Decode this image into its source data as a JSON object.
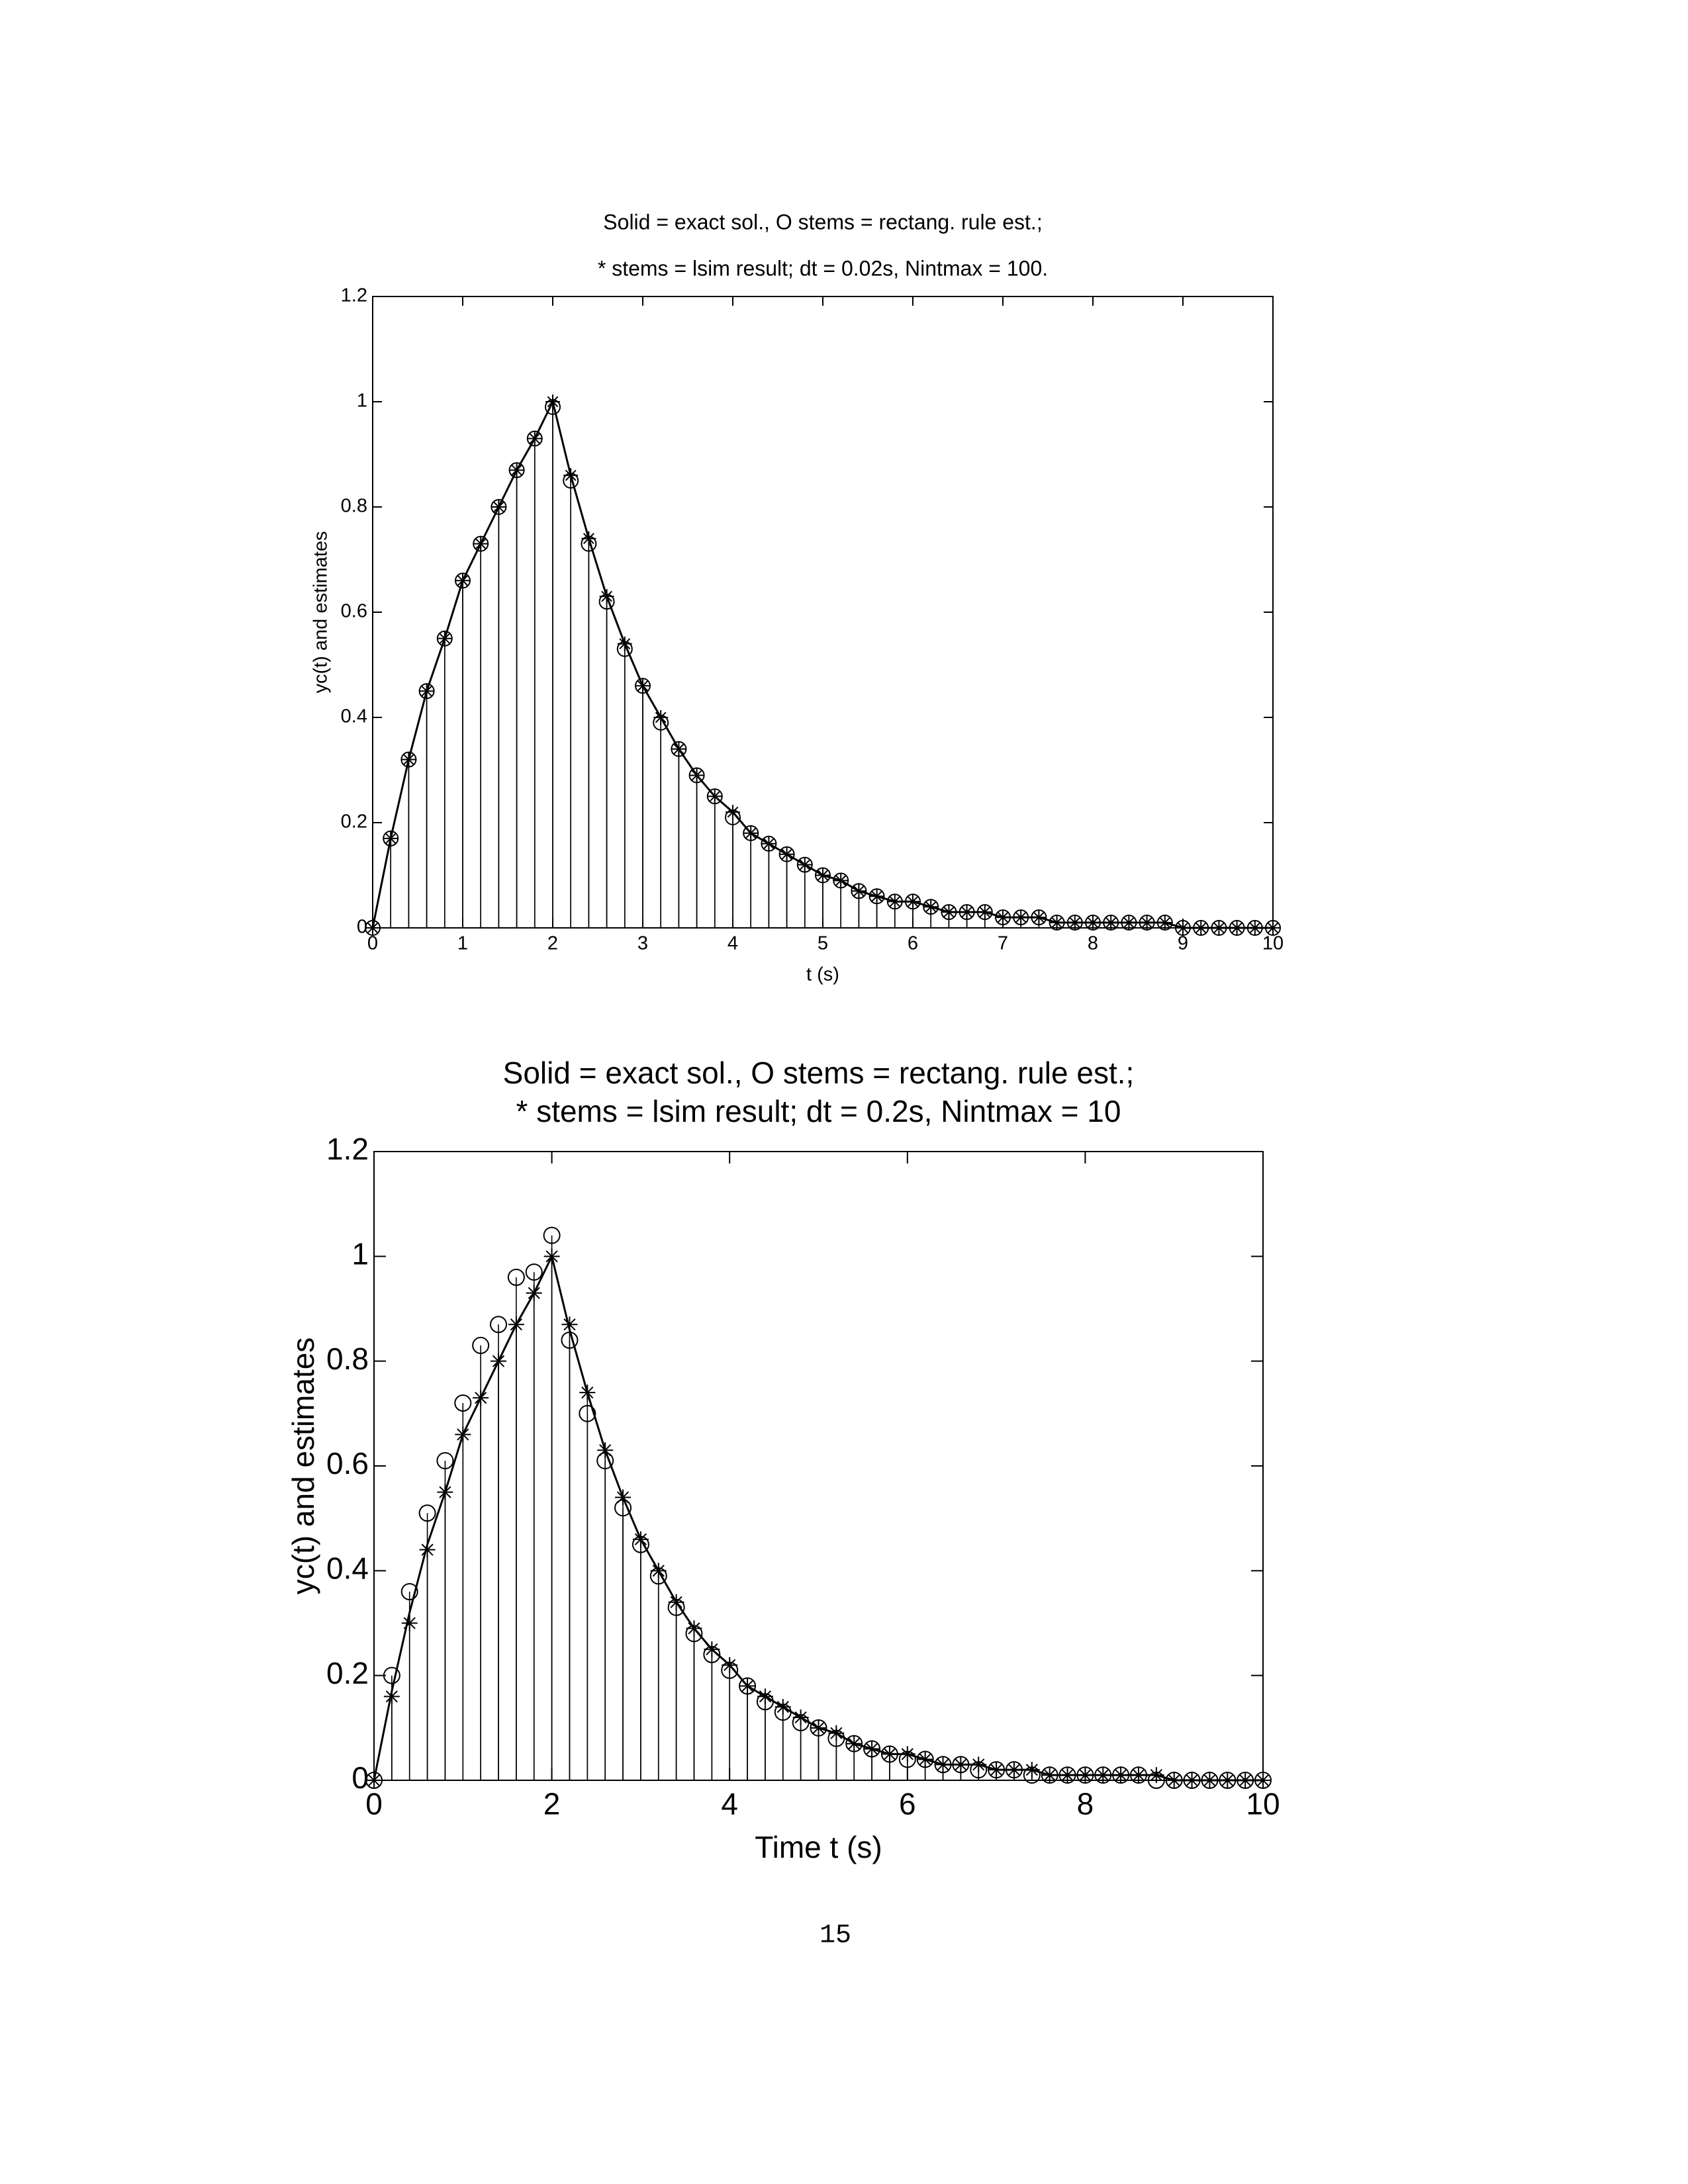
{
  "chart_data": [
    {
      "type": "stem",
      "title": "Solid = exact sol., O stems = rectang. rule est.;",
      "subtitle": "* stems = lsim result; dt = 0.02s, Nintmax = 100.",
      "x_label": "t (s)",
      "y_label": "yc(t) and estimates",
      "xlim": [
        0,
        10
      ],
      "ylim": [
        0,
        1.2
      ],
      "xticks": [
        0,
        1,
        2,
        3,
        4,
        5,
        6,
        7,
        8,
        9,
        10
      ],
      "yticks": [
        0,
        0.2,
        0.4,
        0.6,
        0.8,
        1,
        1.2
      ],
      "grid": false,
      "x": [
        0,
        0.2,
        0.4,
        0.6,
        0.8,
        1,
        1.2,
        1.4,
        1.6,
        1.8,
        2,
        2.2,
        2.4,
        2.6,
        2.8,
        3,
        3.2,
        3.4,
        3.6,
        3.8,
        4,
        4.2,
        4.4,
        4.6,
        4.8,
        5,
        5.2,
        5.4,
        5.6,
        5.8,
        6,
        6.2,
        6.4,
        6.6,
        6.8,
        7,
        7.2,
        7.4,
        7.6,
        7.8,
        8,
        8.2,
        8.4,
        8.6,
        8.8,
        9,
        9.2,
        9.4,
        9.6,
        9.8,
        10
      ],
      "series": [
        {
          "style": "line",
          "color": "#000000",
          "values": [
            0,
            0.17,
            0.32,
            0.45,
            0.55,
            0.66,
            0.73,
            0.8,
            0.87,
            0.93,
            1,
            0.86,
            0.74,
            0.63,
            0.54,
            0.46,
            0.4,
            0.34,
            0.29,
            0.25,
            0.22,
            0.18,
            0.16,
            0.14,
            0.12,
            0.1,
            0.09,
            0.07,
            0.06,
            0.05,
            0.05,
            0.04,
            0.03,
            0.03,
            0.03,
            0.02,
            0.02,
            0.02,
            0.01,
            0.01,
            0.01,
            0.01,
            0.01,
            0.01,
            0.01,
            0,
            0,
            0,
            0,
            0,
            0
          ]
        },
        {
          "style": "circle-stem",
          "color": "#000000",
          "values": [
            0,
            0.17,
            0.32,
            0.45,
            0.55,
            0.66,
            0.73,
            0.8,
            0.87,
            0.93,
            0.99,
            0.85,
            0.73,
            0.62,
            0.53,
            0.46,
            0.39,
            0.34,
            0.29,
            0.25,
            0.21,
            0.18,
            0.16,
            0.14,
            0.12,
            0.1,
            0.09,
            0.07,
            0.06,
            0.05,
            0.05,
            0.04,
            0.03,
            0.03,
            0.03,
            0.02,
            0.02,
            0.02,
            0.01,
            0.01,
            0.01,
            0.01,
            0.01,
            0.01,
            0.01,
            0,
            0,
            0,
            0,
            0,
            0
          ]
        },
        {
          "style": "star-stem",
          "color": "#000000",
          "values": [
            0,
            0.17,
            0.32,
            0.45,
            0.55,
            0.66,
            0.73,
            0.8,
            0.87,
            0.93,
            1,
            0.86,
            0.74,
            0.63,
            0.54,
            0.46,
            0.4,
            0.34,
            0.29,
            0.25,
            0.22,
            0.18,
            0.16,
            0.14,
            0.12,
            0.1,
            0.09,
            0.07,
            0.06,
            0.05,
            0.05,
            0.04,
            0.03,
            0.03,
            0.03,
            0.02,
            0.02,
            0.02,
            0.01,
            0.01,
            0.01,
            0.01,
            0.01,
            0.01,
            0.01,
            0,
            0,
            0,
            0,
            0,
            0
          ]
        }
      ]
    },
    {
      "type": "stem",
      "title": "Solid = exact sol., O stems = rectang. rule est.;",
      "subtitle": "* stems = lsim result; dt = 0.2s, Nintmax = 10",
      "x_label": "Time t (s)",
      "y_label": "yc(t) and estimates",
      "xlim": [
        0,
        10
      ],
      "ylim": [
        0,
        1.2
      ],
      "xticks": [
        0,
        2,
        4,
        6,
        8,
        10
      ],
      "yticks": [
        0,
        0.2,
        0.4,
        0.6,
        0.8,
        1,
        1.2
      ],
      "grid": false,
      "x": [
        0,
        0.2,
        0.4,
        0.6,
        0.8,
        1,
        1.2,
        1.4,
        1.6,
        1.8,
        2,
        2.2,
        2.4,
        2.6,
        2.8,
        3,
        3.2,
        3.4,
        3.6,
        3.8,
        4,
        4.2,
        4.4,
        4.6,
        4.8,
        5,
        5.2,
        5.4,
        5.6,
        5.8,
        6,
        6.2,
        6.4,
        6.6,
        6.8,
        7,
        7.2,
        7.4,
        7.6,
        7.8,
        8,
        8.2,
        8.4,
        8.6,
        8.8,
        9,
        9.2,
        9.4,
        9.6,
        9.8,
        10
      ],
      "series": [
        {
          "style": "line",
          "color": "#000000",
          "values": [
            0,
            0.17,
            0.32,
            0.45,
            0.55,
            0.66,
            0.73,
            0.8,
            0.87,
            0.93,
            1,
            0.86,
            0.74,
            0.63,
            0.54,
            0.46,
            0.4,
            0.34,
            0.29,
            0.25,
            0.22,
            0.18,
            0.16,
            0.14,
            0.12,
            0.1,
            0.09,
            0.07,
            0.06,
            0.05,
            0.05,
            0.04,
            0.03,
            0.03,
            0.03,
            0.02,
            0.02,
            0.02,
            0.01,
            0.01,
            0.01,
            0.01,
            0.01,
            0.01,
            0.01,
            0,
            0,
            0,
            0,
            0,
            0
          ]
        },
        {
          "style": "circle-stem",
          "color": "#000000",
          "values": [
            0,
            0.2,
            0.36,
            0.51,
            0.61,
            0.72,
            0.83,
            0.87,
            0.96,
            0.97,
            1.04,
            0.84,
            0.7,
            0.61,
            0.52,
            0.45,
            0.39,
            0.33,
            0.28,
            0.24,
            0.21,
            0.18,
            0.15,
            0.13,
            0.11,
            0.1,
            0.08,
            0.07,
            0.06,
            0.05,
            0.04,
            0.04,
            0.03,
            0.03,
            0.02,
            0.02,
            0.02,
            0.01,
            0.01,
            0.01,
            0.01,
            0.01,
            0.01,
            0.01,
            0,
            0,
            0,
            0,
            0,
            0,
            0
          ]
        },
        {
          "style": "star-stem",
          "color": "#000000",
          "values": [
            0,
            0.16,
            0.3,
            0.44,
            0.55,
            0.66,
            0.73,
            0.8,
            0.87,
            0.93,
            1,
            0.87,
            0.74,
            0.63,
            0.54,
            0.46,
            0.4,
            0.34,
            0.29,
            0.25,
            0.22,
            0.18,
            0.16,
            0.14,
            0.12,
            0.1,
            0.09,
            0.07,
            0.06,
            0.05,
            0.05,
            0.04,
            0.03,
            0.03,
            0.03,
            0.02,
            0.02,
            0.02,
            0.01,
            0.01,
            0.01,
            0.01,
            0.01,
            0.01,
            0.01,
            0,
            0,
            0,
            0,
            0,
            0
          ]
        }
      ]
    }
  ],
  "page_number": "15"
}
